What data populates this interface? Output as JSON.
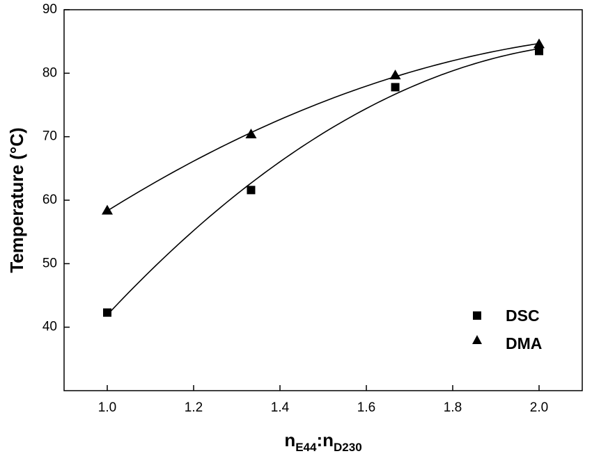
{
  "chart_data": {
    "type": "scatter",
    "xlabel": {
      "main": "n",
      "sub1": "E44",
      "sep": ":n",
      "sub2": "D230"
    },
    "ylabel": "Temperature (°C)",
    "xlim": [
      0.9,
      2.1
    ],
    "ylim": [
      30,
      90
    ],
    "xticks": [
      "1.0",
      "1.2",
      "1.4",
      "1.6",
      "1.8",
      "2.0"
    ],
    "yticks": [
      "40",
      "50",
      "60",
      "70",
      "80",
      "90"
    ],
    "legend_position": "bottom-right",
    "fit_lines": true,
    "series": [
      {
        "name": "DSC",
        "marker": "square",
        "x": [
          1.0,
          1.333,
          1.667,
          2.0
        ],
        "y": [
          42.3,
          61.6,
          77.8,
          83.5
        ]
      },
      {
        "name": "DMA",
        "marker": "triangle",
        "x": [
          1.0,
          1.333,
          1.667,
          2.0
        ],
        "y": [
          58.4,
          70.4,
          79.7,
          84.6
        ]
      }
    ],
    "colors": {
      "marker": "#000000",
      "line": "#000000",
      "axis": "#000000"
    }
  }
}
